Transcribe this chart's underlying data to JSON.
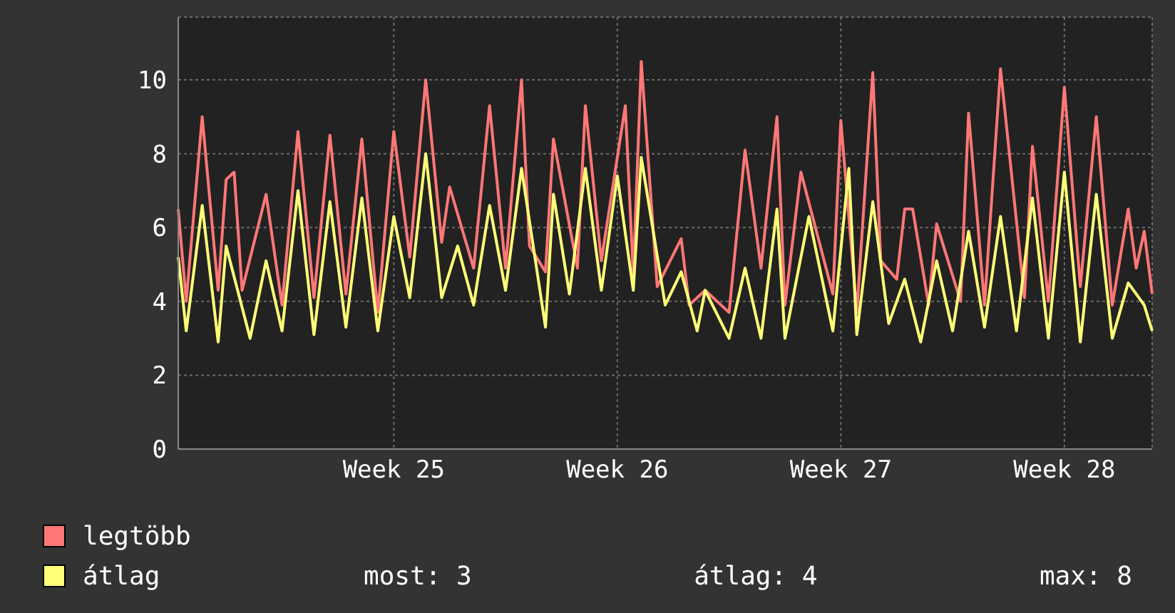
{
  "chart_data": {
    "type": "line",
    "categories": [
      null,
      null,
      null,
      null,
      null,
      null,
      null,
      null,
      null,
      null,
      null,
      null,
      null,
      null,
      null,
      null,
      null,
      null,
      null,
      null,
      null,
      null,
      null,
      null,
      null,
      null,
      null,
      "Week 25",
      null,
      null,
      null,
      null,
      null,
      null,
      null,
      null,
      null,
      null,
      null,
      null,
      null,
      null,
      null,
      null,
      null,
      null,
      null,
      null,
      null,
      null,
      null,
      null,
      null,
      null,
      null,
      "Week 26",
      null,
      null,
      null,
      null,
      null,
      null,
      null,
      null,
      null,
      null,
      null,
      null,
      null,
      null,
      null,
      null,
      null,
      null,
      null,
      null,
      null,
      null,
      null,
      null,
      null,
      null,
      null,
      "Week 27",
      null,
      null,
      null,
      null,
      null,
      null,
      null,
      null,
      null,
      null,
      null,
      null,
      null,
      null,
      null,
      null,
      null,
      null,
      null,
      null,
      null,
      null,
      null,
      null,
      null,
      null,
      null,
      "Week 28",
      null,
      null,
      null,
      null,
      null,
      null,
      null,
      null,
      null,
      null,
      null
    ],
    "ylim": [
      0,
      11.7
    ],
    "yticks": [
      0,
      2,
      4,
      6,
      8,
      10
    ],
    "grid": true,
    "legend": "bottom",
    "marker": "none",
    "line_style": "solid",
    "annotations": [
      "most: 3",
      "átlag: 4",
      "max: 8"
    ],
    "series": [
      {
        "name": "legtöbb",
        "color": "#ff7777",
        "values": [
          6.5,
          4.0,
          null,
          9.0,
          null,
          4.3,
          7.3,
          7.5,
          4.3,
          null,
          null,
          6.9,
          null,
          3.9,
          null,
          8.6,
          null,
          4.1,
          null,
          8.5,
          null,
          4.2,
          null,
          8.4,
          null,
          3.7,
          null,
          8.6,
          null,
          5.2,
          null,
          10.0,
          null,
          5.6,
          7.1,
          null,
          null,
          4.9,
          null,
          9.3,
          null,
          4.9,
          null,
          10.0,
          5.5,
          null,
          4.8,
          8.4,
          null,
          null,
          4.9,
          9.3,
          null,
          5.1,
          null,
          null,
          9.3,
          4.7,
          10.5,
          null,
          4.4,
          null,
          null,
          5.7,
          3.9,
          null,
          4.3,
          null,
          null,
          3.7,
          null,
          8.1,
          null,
          4.9,
          null,
          9.0,
          3.9,
          null,
          7.5,
          null,
          null,
          null,
          4.2,
          8.9,
          null,
          3.7,
          null,
          10.2,
          5.1,
          null,
          4.6,
          6.5,
          6.5,
          null,
          3.9,
          6.1,
          null,
          null,
          4.0,
          9.1,
          null,
          3.9,
          null,
          10.3,
          null,
          null,
          4.1,
          8.2,
          null,
          4.0,
          null,
          9.8,
          null,
          4.4,
          null,
          9.0,
          null,
          3.9,
          null,
          6.5,
          4.9,
          5.9,
          4.2
        ]
      },
      {
        "name": "átlag",
        "color": "#ffff77",
        "values": [
          5.2,
          3.2,
          null,
          6.6,
          null,
          2.9,
          5.5,
          null,
          null,
          3.0,
          null,
          5.1,
          null,
          3.2,
          null,
          7.0,
          null,
          3.1,
          null,
          6.7,
          null,
          3.3,
          null,
          6.8,
          null,
          3.2,
          null,
          6.3,
          null,
          4.1,
          null,
          8.0,
          null,
          4.1,
          null,
          5.5,
          null,
          3.9,
          null,
          6.6,
          null,
          4.3,
          null,
          7.6,
          null,
          null,
          3.3,
          6.9,
          null,
          4.2,
          null,
          7.6,
          null,
          4.3,
          null,
          7.4,
          null,
          4.3,
          7.9,
          null,
          null,
          3.9,
          null,
          4.8,
          null,
          3.2,
          4.3,
          null,
          null,
          3.0,
          null,
          4.9,
          null,
          3.0,
          null,
          6.5,
          3.0,
          null,
          null,
          6.3,
          null,
          null,
          3.2,
          null,
          7.6,
          3.1,
          null,
          6.7,
          null,
          3.4,
          null,
          4.6,
          null,
          2.9,
          null,
          5.1,
          null,
          3.2,
          null,
          5.9,
          null,
          3.3,
          null,
          6.3,
          null,
          3.2,
          null,
          6.8,
          null,
          3.0,
          null,
          7.5,
          null,
          2.9,
          null,
          6.9,
          null,
          3.0,
          null,
          4.5,
          null,
          3.9,
          3.2
        ]
      }
    ]
  }
}
